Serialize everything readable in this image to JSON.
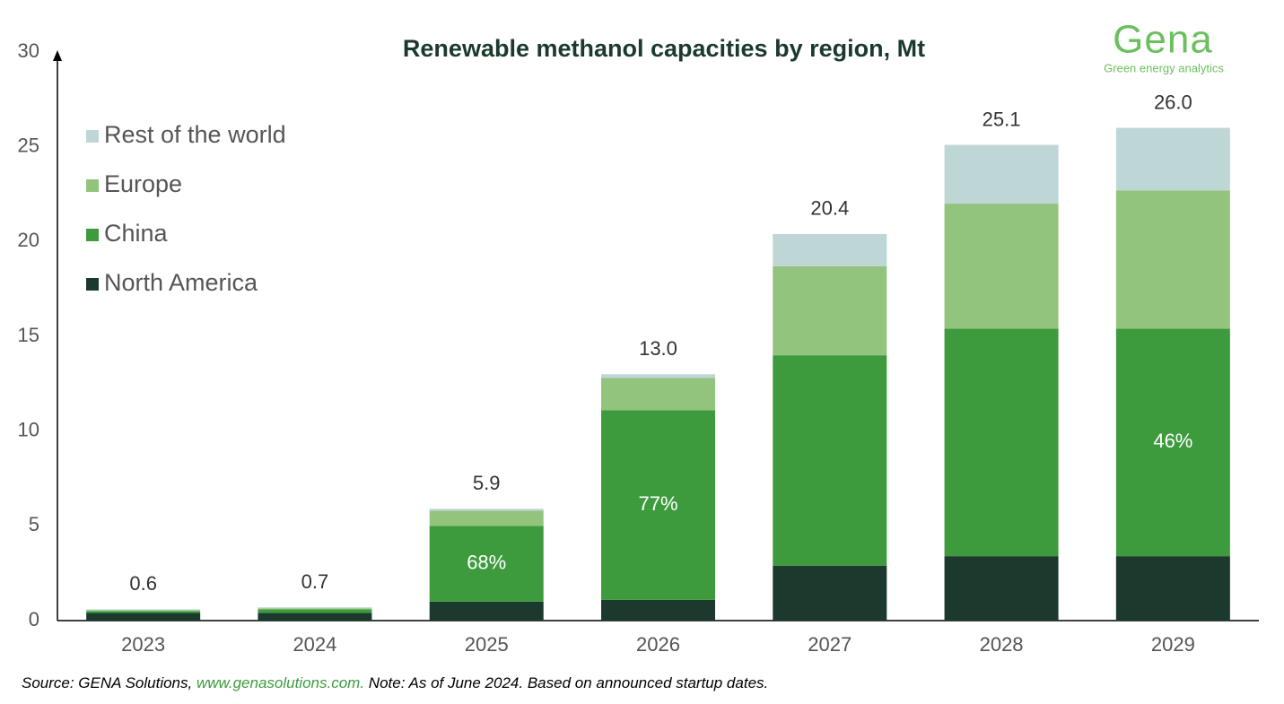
{
  "chart_data": {
    "type": "stacked_bar",
    "title": "Renewable methanol capacities by region, Mt",
    "logo": {
      "name": "Gena",
      "tagline": "Green energy analytics"
    },
    "categories": [
      "2023",
      "2024",
      "2025",
      "2026",
      "2027",
      "2028",
      "2029"
    ],
    "series": [
      {
        "name": "North America",
        "color": "#1b3a2d",
        "values": [
          0.4,
          0.4,
          1.0,
          1.1,
          2.9,
          3.4,
          3.4
        ]
      },
      {
        "name": "China",
        "color": "#3d9b3e",
        "values": [
          0.1,
          0.2,
          4.0,
          10.0,
          11.1,
          12.0,
          12.0
        ]
      },
      {
        "name": "Europe",
        "color": "#93c47d",
        "values": [
          0.05,
          0.05,
          0.8,
          1.7,
          4.7,
          6.6,
          7.3
        ]
      },
      {
        "name": "Rest of the world",
        "color": "#bfd6d6",
        "values": [
          0.05,
          0.05,
          0.1,
          0.2,
          1.7,
          3.1,
          3.3
        ]
      }
    ],
    "totals": {
      "values": [
        0.6,
        0.7,
        5.9,
        13.0,
        20.4,
        25.1,
        26.0
      ],
      "value_labels": [
        "0.6",
        "0.7",
        "5.9",
        "13.0",
        "20.4",
        "25.1",
        "26.0"
      ]
    },
    "china_share": {
      "values": [
        null,
        null,
        68,
        77,
        null,
        null,
        46
      ],
      "value_labels": [
        null,
        null,
        "68%",
        "77%",
        null,
        null,
        "46%"
      ]
    },
    "ylim": [
      0,
      30
    ],
    "yticks": [
      0,
      5,
      10,
      15,
      20,
      25,
      30
    ],
    "grid": false,
    "legend": "top-left",
    "source": {
      "prefix": "Source: GENA Solutions, ",
      "link": "www.genasolutions.com.",
      "suffix": " Note: As of June 2024. Based on announced startup dates."
    }
  }
}
